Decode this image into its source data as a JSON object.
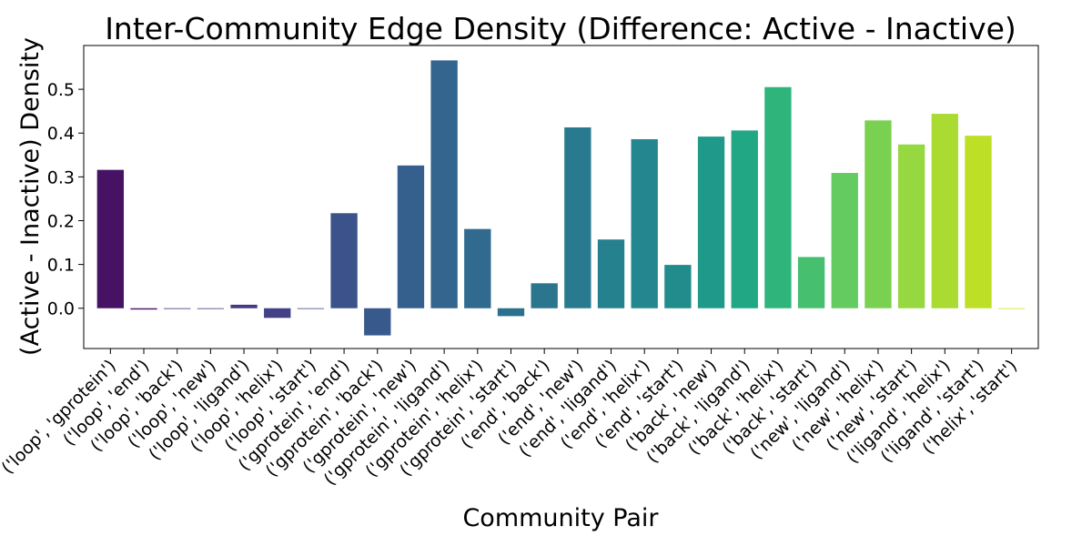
{
  "chart_data": {
    "type": "bar",
    "title": "Inter-Community Edge Density (Difference: Active - Inactive)",
    "xlabel": "Community Pair",
    "ylabel": "(Active - Inactive) Density",
    "ylim": [
      -0.092,
      0.6
    ],
    "yticks": [
      0.0,
      0.1,
      0.2,
      0.3,
      0.4,
      0.5
    ],
    "ytick_labels": [
      "0.0",
      "0.1",
      "0.2",
      "0.3",
      "0.4",
      "0.5"
    ],
    "grid": false,
    "legend": "none",
    "palette": "viridis",
    "categories": [
      "('loop', 'gprotein')",
      "('loop', 'end')",
      "('loop', 'back')",
      "('loop', 'new')",
      "('loop', 'ligand')",
      "('loop', 'helix')",
      "('loop', 'start')",
      "('gprotein', 'end')",
      "('gprotein', 'back')",
      "('gprotein', 'new')",
      "('gprotein', 'ligand')",
      "('gprotein', 'helix')",
      "('gprotein', 'start')",
      "('end', 'back')",
      "('end', 'new')",
      "('end', 'ligand')",
      "('end', 'helix')",
      "('end', 'start')",
      "('back', 'new')",
      "('back', 'ligand')",
      "('back', 'helix')",
      "('back', 'start')",
      "('new', 'ligand')",
      "('new', 'helix')",
      "('new', 'start')",
      "('ligand', 'helix')",
      "('ligand', 'start')",
      "('helix', 'start')"
    ],
    "values": [
      0.316,
      -0.003,
      0.0,
      0.0,
      0.008,
      -0.022,
      0.0,
      0.217,
      -0.062,
      0.326,
      0.566,
      0.181,
      -0.018,
      0.057,
      0.413,
      0.157,
      0.386,
      0.099,
      0.392,
      0.406,
      0.505,
      0.117,
      0.309,
      0.429,
      0.374,
      0.444,
      0.394,
      0.0
    ],
    "colors": [
      "#471164",
      "#481769",
      "#472a7a",
      "#46337f",
      "#443a83",
      "#424086",
      "#3e4a89",
      "#3b528b",
      "#38598c",
      "#355f8d",
      "#33658e",
      "#306a8e",
      "#2d708e",
      "#2b758e",
      "#297a8e",
      "#26818e",
      "#24868e",
      "#228c8d",
      "#1f9a8a",
      "#22a785",
      "#2fb47c",
      "#46c06f",
      "#63cb5f",
      "#7ad151",
      "#95d840",
      "#a9db33",
      "#bddf26",
      "#d2e21b"
    ]
  }
}
